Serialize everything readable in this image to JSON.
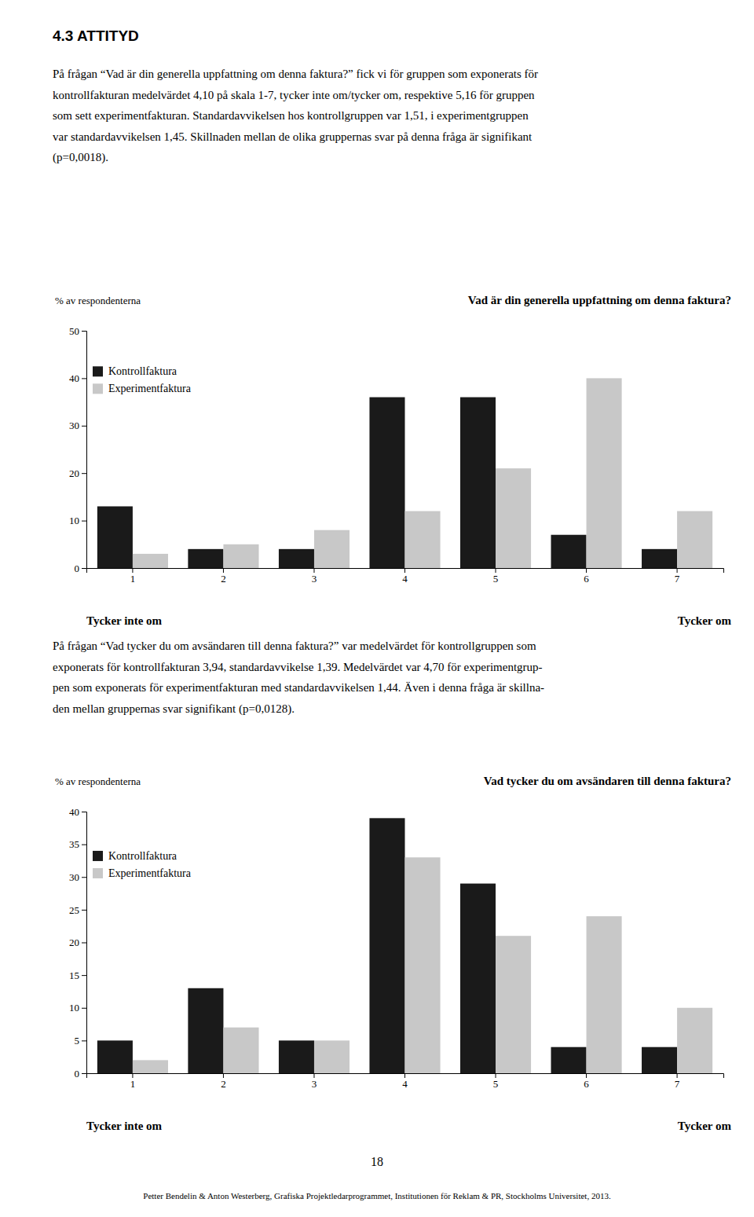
{
  "heading": "4.3 ATTITYD",
  "paragraphs": [
    [
      "På frågan “Vad är din generella uppfattning om denna faktura?” fick vi för gruppen som exponerats för",
      "kontrollfakturan medelvärdet 4,10 på skala 1-7, tycker inte om/tycker om, respektive 5,16 för gruppen",
      "som sett experimentfakturan. Standardavvikelsen hos kontrollgruppen var 1,51, i experimentgruppen",
      "var standardavvikelsen 1,45. Skillnaden mellan de olika gruppernas svar på denna fråga är signifikant",
      "(p=0,0018)."
    ],
    [
      "På frågan “Vad tycker du om avsändaren till denna faktura?” var medelvärdet för kontrollgruppen som",
      "exponerats för kontrollfakturan 3,94, standardavvikelse 1,39. Medelvärdet var 4,70 för experimentgrup-",
      "pen som exponerats för experimentfakturan med standardavvikelsen 1,44. Även i denna fråga är skillna-",
      "den mellan gruppernas svar signifikant (p=0,0128)."
    ]
  ],
  "page_number": "18",
  "footer": "Petter Bendelin & Anton Westerberg, Grafiska Projektledarprogrammet, Institutionen för Reklam & PR, Stockholms Universitet, 2013.",
  "chart_data": [
    {
      "type": "bar",
      "title": "Vad är din generella uppfattning om denna faktura?",
      "ylabel": "% av respondenterna",
      "annotations": [
        "Tycker inte om",
        "Tycker om"
      ],
      "categories": [
        "1",
        "2",
        "3",
        "4",
        "5",
        "6",
        "7"
      ],
      "series": [
        {
          "name": "Kontrollfaktura",
          "color": "#1a1a1a",
          "values": [
            13,
            4,
            4,
            36,
            36,
            7,
            4
          ]
        },
        {
          "name": "Experimentfaktura",
          "color": "#c8c8c8",
          "values": [
            3,
            5,
            8,
            12,
            21,
            40,
            12
          ]
        }
      ],
      "ylim": [
        0,
        50
      ],
      "yticks": [
        0,
        10,
        20,
        30,
        40,
        50
      ],
      "grid": false,
      "legend": "upper left"
    },
    {
      "type": "bar",
      "title": "Vad tycker du om avsändaren till denna faktura?",
      "ylabel": "% av respondenterna",
      "annotations": [
        "Tycker inte om",
        "Tycker om"
      ],
      "categories": [
        "1",
        "2",
        "3",
        "4",
        "5",
        "6",
        "7"
      ],
      "series": [
        {
          "name": "Kontrollfaktura",
          "color": "#1a1a1a",
          "values": [
            5,
            13,
            5,
            39,
            29,
            4,
            4
          ]
        },
        {
          "name": "Experimentfaktura",
          "color": "#c8c8c8",
          "values": [
            2,
            7,
            5,
            33,
            21,
            24,
            10
          ]
        }
      ],
      "ylim": [
        0,
        40
      ],
      "yticks": [
        0,
        5,
        10,
        15,
        20,
        25,
        30,
        35,
        40
      ],
      "grid": false,
      "legend": "upper left"
    }
  ]
}
